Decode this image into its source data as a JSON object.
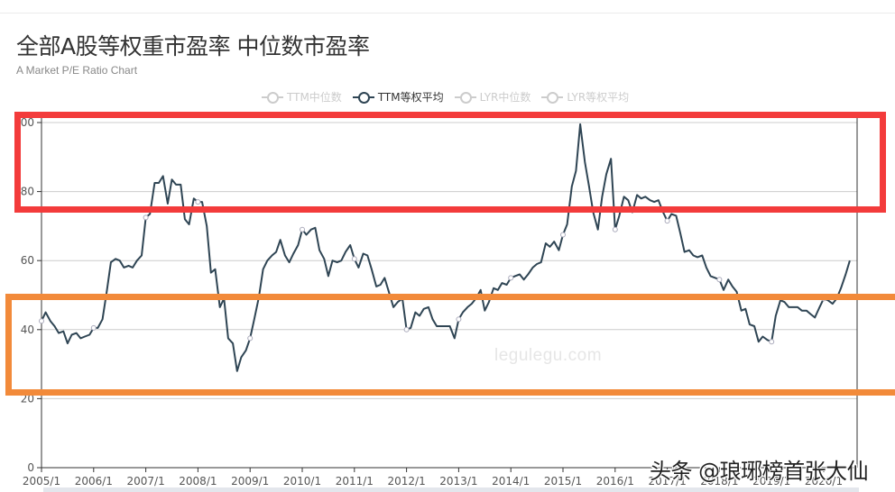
{
  "header": {
    "title": "全部A股等权重市盈率 中位数市盈率",
    "subtitle": "A Market P/E Ratio Chart"
  },
  "legend": [
    {
      "label": "TTM中位数",
      "active": false,
      "color": "#cccccc"
    },
    {
      "label": "TTM等权平均",
      "active": true,
      "color": "#2f4554"
    },
    {
      "label": "LYR中位数",
      "active": false,
      "color": "#cccccc"
    },
    {
      "label": "LYR等权平均",
      "active": false,
      "color": "#cccccc"
    }
  ],
  "watermarks": {
    "site": "legulegu.com",
    "author": "头条 @琅琊榜首张大仙"
  },
  "annotations": [
    {
      "name": "red-highlight-box",
      "color": "#f33b3b",
      "range": [
        78,
        101
      ]
    },
    {
      "name": "orange-highlight-box",
      "color": "#f28a3a",
      "range": [
        22,
        50
      ]
    }
  ],
  "chart_data": {
    "type": "line",
    "title": "全部A股等权重市盈率 中位数市盈率",
    "subtitle": "A Market P/E Ratio Chart",
    "xlabel": "",
    "ylabel": "",
    "ylim": [
      0,
      100
    ],
    "yticks": [
      "0",
      "20",
      "40",
      "60",
      "80",
      "00"
    ],
    "xticks": [
      "2005/1",
      "2006/1",
      "2007/1",
      "2008/1",
      "2009/1",
      "2010/1",
      "2011/1",
      "2012/1",
      "2013/1",
      "2014/1",
      "2015/1",
      "2016/1",
      "2017/1",
      "2018/1",
      "2019/1",
      "2020/1"
    ],
    "grid": true,
    "legend_position": "top-center",
    "series": [
      {
        "name": "TTM等权平均",
        "color": "#2f4554",
        "x": [
          2005.0,
          2005.08,
          2005.17,
          2005.25,
          2005.33,
          2005.42,
          2005.5,
          2005.58,
          2005.67,
          2005.75,
          2005.83,
          2005.92,
          2006.0,
          2006.08,
          2006.17,
          2006.25,
          2006.33,
          2006.42,
          2006.5,
          2006.58,
          2006.67,
          2006.75,
          2006.83,
          2006.92,
          2007.0,
          2007.08,
          2007.17,
          2007.25,
          2007.33,
          2007.42,
          2007.5,
          2007.58,
          2007.67,
          2007.75,
          2007.83,
          2007.92,
          2008.0,
          2008.08,
          2008.17,
          2008.25,
          2008.33,
          2008.42,
          2008.5,
          2008.58,
          2008.67,
          2008.75,
          2008.83,
          2008.92,
          2009.0,
          2009.08,
          2009.17,
          2009.25,
          2009.33,
          2009.42,
          2009.5,
          2009.58,
          2009.67,
          2009.75,
          2009.83,
          2009.92,
          2010.0,
          2010.08,
          2010.17,
          2010.25,
          2010.33,
          2010.42,
          2010.5,
          2010.58,
          2010.67,
          2010.75,
          2010.83,
          2010.92,
          2011.0,
          2011.08,
          2011.17,
          2011.25,
          2011.33,
          2011.42,
          2011.5,
          2011.58,
          2011.67,
          2011.75,
          2011.83,
          2011.92,
          2012.0,
          2012.08,
          2012.17,
          2012.25,
          2012.33,
          2012.42,
          2012.5,
          2012.58,
          2012.67,
          2012.75,
          2012.83,
          2012.92,
          2013.0,
          2013.08,
          2013.17,
          2013.25,
          2013.33,
          2013.42,
          2013.5,
          2013.58,
          2013.67,
          2013.75,
          2013.83,
          2013.92,
          2014.0,
          2014.08,
          2014.17,
          2014.25,
          2014.33,
          2014.42,
          2014.5,
          2014.58,
          2014.67,
          2014.75,
          2014.83,
          2014.92,
          2015.0,
          2015.08,
          2015.17,
          2015.25,
          2015.33,
          2015.42,
          2015.5,
          2015.58,
          2015.67,
          2015.75,
          2015.83,
          2015.92,
          2016.0,
          2016.08,
          2016.17,
          2016.25,
          2016.33,
          2016.42,
          2016.5,
          2016.58,
          2016.67,
          2016.75,
          2016.83,
          2016.92,
          2017.0,
          2017.08,
          2017.17,
          2017.25,
          2017.33,
          2017.42,
          2017.5,
          2017.58,
          2017.67,
          2017.75,
          2017.83,
          2017.92,
          2018.0,
          2018.08,
          2018.17,
          2018.25,
          2018.33,
          2018.42,
          2018.5,
          2018.58,
          2018.67,
          2018.75,
          2018.83,
          2018.92,
          2019.0,
          2019.08,
          2019.17,
          2019.25,
          2019.33,
          2019.42,
          2019.5,
          2019.58,
          2019.67,
          2019.75,
          2019.83,
          2019.92,
          2020.0,
          2020.08,
          2020.17,
          2020.25,
          2020.33,
          2020.42,
          2020.5
        ],
        "values": [
          42.5,
          45,
          42.5,
          41,
          39,
          39.5,
          36,
          38.5,
          39,
          37.5,
          38,
          38.5,
          40.5,
          40.5,
          43,
          51,
          59.5,
          60.5,
          60,
          58,
          58.5,
          58,
          60,
          61.5,
          72.5,
          73.5,
          82.5,
          82.5,
          84.5,
          76.5,
          83.5,
          82,
          82,
          72,
          70.5,
          78,
          77,
          77,
          70,
          56.5,
          57.5,
          46.5,
          49,
          37.5,
          36,
          28,
          32,
          34,
          37.5,
          43,
          49.5,
          57.5,
          60,
          61.5,
          62.5,
          66,
          61.5,
          59.5,
          62,
          64.5,
          69,
          67.5,
          69,
          69.5,
          63,
          60.5,
          55.5,
          60,
          59.5,
          60,
          62.5,
          64.5,
          60.5,
          58,
          62,
          61.5,
          57.5,
          52.5,
          53,
          55,
          50.5,
          46.5,
          48,
          49,
          40,
          40.5,
          45,
          44,
          46,
          46.5,
          43,
          41,
          41,
          41,
          41,
          37.5,
          43,
          45,
          46.5,
          47.5,
          49,
          51.5,
          45.5,
          48,
          52,
          51.5,
          53.5,
          53,
          55,
          55.5,
          56,
          54.5,
          56,
          58,
          59,
          59.5,
          65,
          64,
          65.5,
          63,
          67.5,
          70.5,
          81.5,
          86,
          99.5,
          88.5,
          81.5,
          74,
          69,
          78.5,
          85,
          89.5,
          69,
          73,
          78.5,
          77.5,
          74,
          79,
          78,
          78.5,
          77.5,
          77,
          77.5,
          74,
          71.5,
          73.5,
          73,
          68,
          62.5,
          63,
          61.5,
          61,
          61.5,
          58,
          55.5,
          55,
          54.5,
          51.5,
          54.5,
          52.5,
          51,
          45.5,
          46,
          41.5,
          41,
          36.5,
          38,
          37,
          36.5,
          44,
          48.5,
          48,
          46.5,
          46.5,
          46.5,
          45.5,
          45.5,
          44.5,
          43.5,
          46.5,
          49,
          48.5,
          47.5,
          49,
          52,
          56,
          60
        ]
      }
    ]
  }
}
